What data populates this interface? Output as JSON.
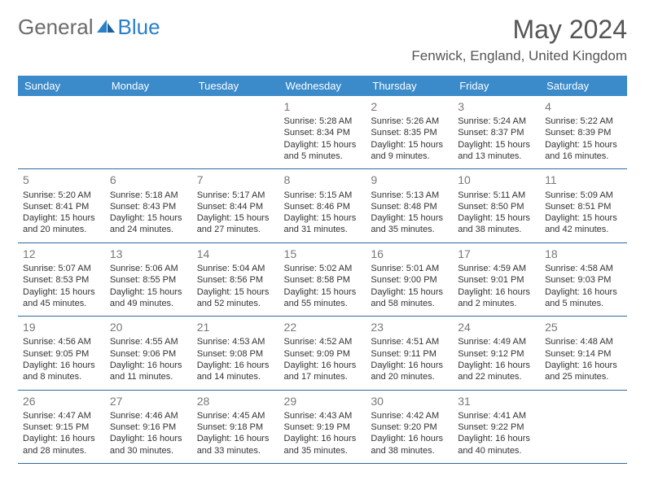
{
  "logo": {
    "word1": "General",
    "word2": "Blue"
  },
  "title": "May 2024",
  "location": "Fenwick, England, United Kingdom",
  "colors": {
    "header_bg": "#3b8bca",
    "header_text": "#ffffff",
    "border": "#2f6aa0",
    "daynum": "#787878",
    "body_text": "#333333",
    "logo_gray": "#6b6b6b",
    "logo_blue": "#2a7fc9",
    "background": "#ffffff"
  },
  "typography": {
    "title_fontsize": 32,
    "location_fontsize": 17,
    "header_fontsize": 13,
    "daynum_fontsize": 14,
    "cell_fontsize": 11
  },
  "day_headers": [
    "Sunday",
    "Monday",
    "Tuesday",
    "Wednesday",
    "Thursday",
    "Friday",
    "Saturday"
  ],
  "sunrise_label": "Sunrise: ",
  "sunset_label": "Sunset: ",
  "daylight_prefix": "Daylight: ",
  "and_word": " and ",
  "minutes_suffix": " minutes.",
  "weeks": [
    [
      null,
      null,
      null,
      {
        "n": "1",
        "sr": "5:28 AM",
        "ss": "8:34 PM",
        "dh": "15 hours",
        "dm": "5"
      },
      {
        "n": "2",
        "sr": "5:26 AM",
        "ss": "8:35 PM",
        "dh": "15 hours",
        "dm": "9"
      },
      {
        "n": "3",
        "sr": "5:24 AM",
        "ss": "8:37 PM",
        "dh": "15 hours",
        "dm": "13"
      },
      {
        "n": "4",
        "sr": "5:22 AM",
        "ss": "8:39 PM",
        "dh": "15 hours",
        "dm": "16"
      }
    ],
    [
      {
        "n": "5",
        "sr": "5:20 AM",
        "ss": "8:41 PM",
        "dh": "15 hours",
        "dm": "20"
      },
      {
        "n": "6",
        "sr": "5:18 AM",
        "ss": "8:43 PM",
        "dh": "15 hours",
        "dm": "24"
      },
      {
        "n": "7",
        "sr": "5:17 AM",
        "ss": "8:44 PM",
        "dh": "15 hours",
        "dm": "27"
      },
      {
        "n": "8",
        "sr": "5:15 AM",
        "ss": "8:46 PM",
        "dh": "15 hours",
        "dm": "31"
      },
      {
        "n": "9",
        "sr": "5:13 AM",
        "ss": "8:48 PM",
        "dh": "15 hours",
        "dm": "35"
      },
      {
        "n": "10",
        "sr": "5:11 AM",
        "ss": "8:50 PM",
        "dh": "15 hours",
        "dm": "38"
      },
      {
        "n": "11",
        "sr": "5:09 AM",
        "ss": "8:51 PM",
        "dh": "15 hours",
        "dm": "42"
      }
    ],
    [
      {
        "n": "12",
        "sr": "5:07 AM",
        "ss": "8:53 PM",
        "dh": "15 hours",
        "dm": "45"
      },
      {
        "n": "13",
        "sr": "5:06 AM",
        "ss": "8:55 PM",
        "dh": "15 hours",
        "dm": "49"
      },
      {
        "n": "14",
        "sr": "5:04 AM",
        "ss": "8:56 PM",
        "dh": "15 hours",
        "dm": "52"
      },
      {
        "n": "15",
        "sr": "5:02 AM",
        "ss": "8:58 PM",
        "dh": "15 hours",
        "dm": "55"
      },
      {
        "n": "16",
        "sr": "5:01 AM",
        "ss": "9:00 PM",
        "dh": "15 hours",
        "dm": "58"
      },
      {
        "n": "17",
        "sr": "4:59 AM",
        "ss": "9:01 PM",
        "dh": "16 hours",
        "dm": "2"
      },
      {
        "n": "18",
        "sr": "4:58 AM",
        "ss": "9:03 PM",
        "dh": "16 hours",
        "dm": "5"
      }
    ],
    [
      {
        "n": "19",
        "sr": "4:56 AM",
        "ss": "9:05 PM",
        "dh": "16 hours",
        "dm": "8"
      },
      {
        "n": "20",
        "sr": "4:55 AM",
        "ss": "9:06 PM",
        "dh": "16 hours",
        "dm": "11"
      },
      {
        "n": "21",
        "sr": "4:53 AM",
        "ss": "9:08 PM",
        "dh": "16 hours",
        "dm": "14"
      },
      {
        "n": "22",
        "sr": "4:52 AM",
        "ss": "9:09 PM",
        "dh": "16 hours",
        "dm": "17"
      },
      {
        "n": "23",
        "sr": "4:51 AM",
        "ss": "9:11 PM",
        "dh": "16 hours",
        "dm": "20"
      },
      {
        "n": "24",
        "sr": "4:49 AM",
        "ss": "9:12 PM",
        "dh": "16 hours",
        "dm": "22"
      },
      {
        "n": "25",
        "sr": "4:48 AM",
        "ss": "9:14 PM",
        "dh": "16 hours",
        "dm": "25"
      }
    ],
    [
      {
        "n": "26",
        "sr": "4:47 AM",
        "ss": "9:15 PM",
        "dh": "16 hours",
        "dm": "28"
      },
      {
        "n": "27",
        "sr": "4:46 AM",
        "ss": "9:16 PM",
        "dh": "16 hours",
        "dm": "30"
      },
      {
        "n": "28",
        "sr": "4:45 AM",
        "ss": "9:18 PM",
        "dh": "16 hours",
        "dm": "33"
      },
      {
        "n": "29",
        "sr": "4:43 AM",
        "ss": "9:19 PM",
        "dh": "16 hours",
        "dm": "35"
      },
      {
        "n": "30",
        "sr": "4:42 AM",
        "ss": "9:20 PM",
        "dh": "16 hours",
        "dm": "38"
      },
      {
        "n": "31",
        "sr": "4:41 AM",
        "ss": "9:22 PM",
        "dh": "16 hours",
        "dm": "40"
      },
      null
    ]
  ]
}
